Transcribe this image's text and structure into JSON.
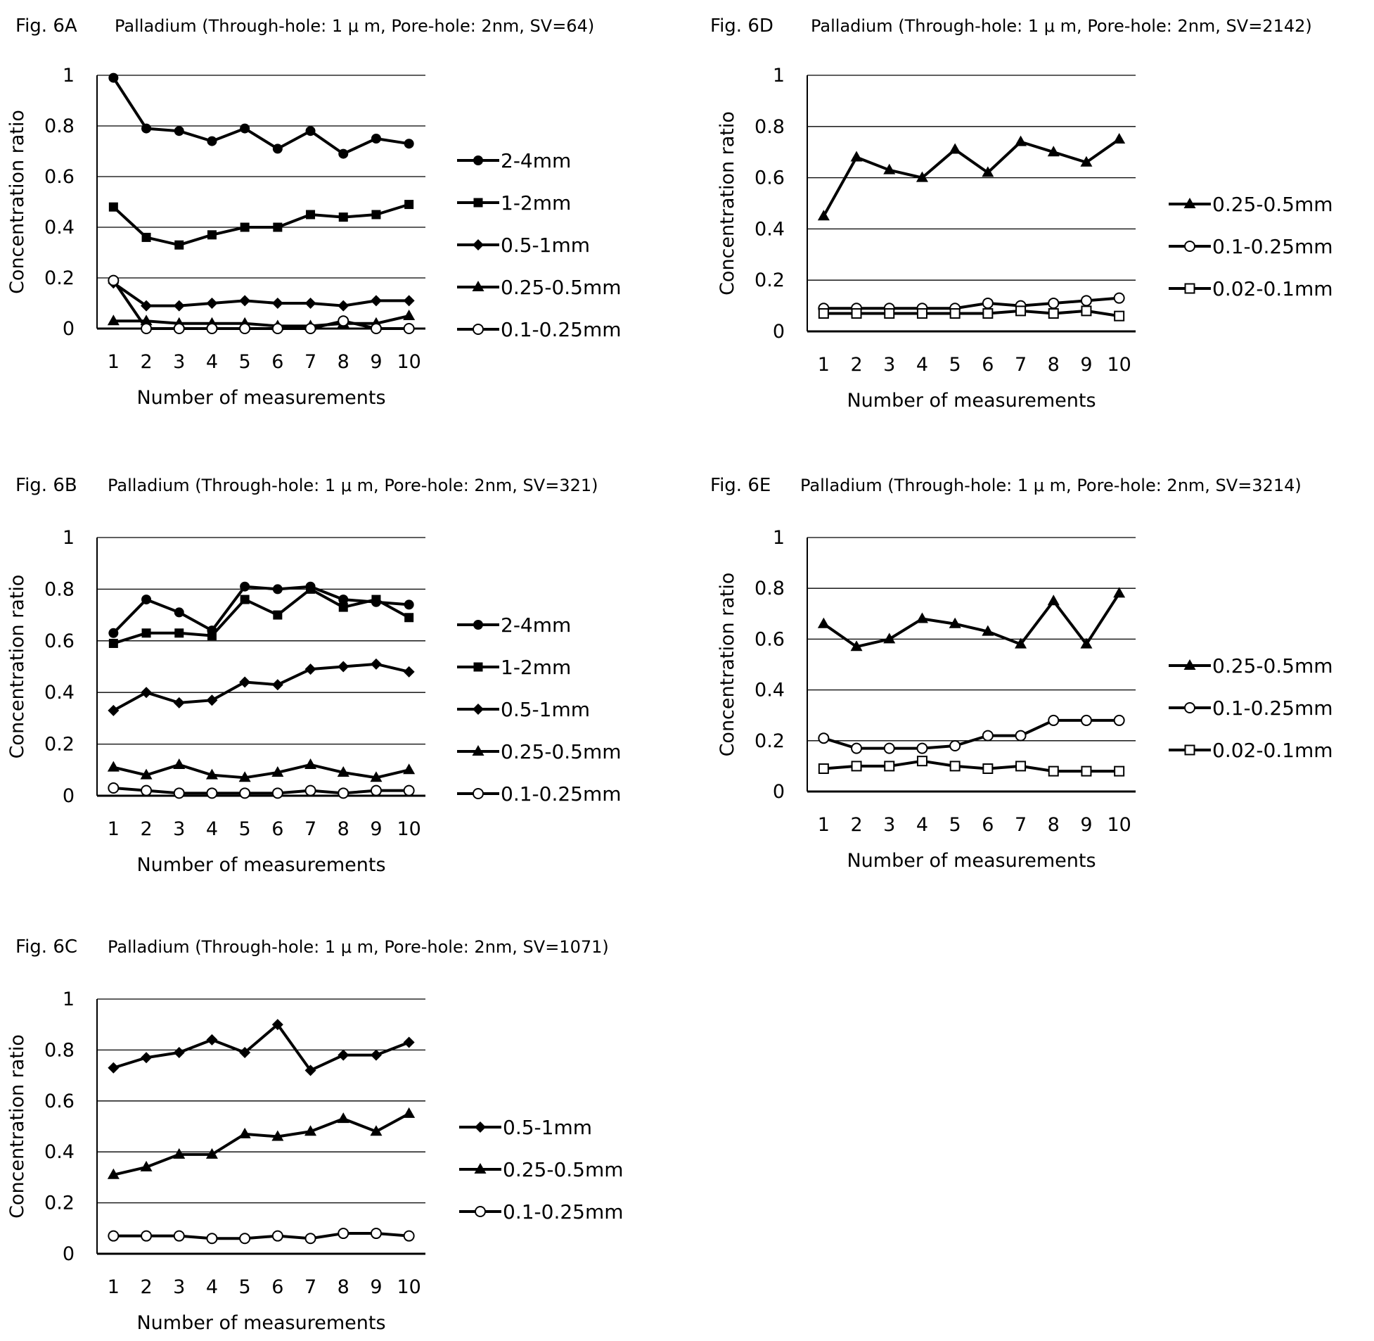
{
  "charts": [
    {
      "fig_label": "Fig. 6A",
      "title": "Palladium (Through-hole: 1 μ m, Pore-hole: 2nm, SV=64)",
      "chart_data": {
        "type": "line",
        "xlabel": "Number of measurements",
        "ylabel": "Concentration ratio",
        "x": [
          1,
          2,
          3,
          4,
          5,
          6,
          7,
          8,
          9,
          10
        ],
        "yticks": [
          "0",
          "0.2",
          "0.4",
          "0.6",
          "0.8",
          "1"
        ],
        "ylim": [
          0,
          1
        ],
        "grid": true,
        "legend_position": "right",
        "series": [
          {
            "name": "2-4mm",
            "marker": "filled-circle",
            "values": [
              0.99,
              0.79,
              0.78,
              0.74,
              0.79,
              0.71,
              0.78,
              0.69,
              0.75,
              0.73
            ]
          },
          {
            "name": "1-2mm",
            "marker": "filled-square",
            "values": [
              0.48,
              0.36,
              0.33,
              0.37,
              0.4,
              0.4,
              0.45,
              0.44,
              0.45,
              0.49
            ]
          },
          {
            "name": "0.5-1mm",
            "marker": "filled-diamond",
            "values": [
              0.18,
              0.09,
              0.09,
              0.1,
              0.11,
              0.1,
              0.1,
              0.09,
              0.11,
              0.11
            ]
          },
          {
            "name": "0.25-0.5mm",
            "marker": "filled-triangle",
            "values": [
              0.03,
              0.03,
              0.02,
              0.02,
              0.02,
              0.01,
              0.01,
              0.02,
              0.02,
              0.05
            ]
          },
          {
            "name": "0.1-0.25mm",
            "marker": "open-circle",
            "values": [
              0.19,
              0.0,
              0.0,
              0.0,
              0.0,
              0.0,
              0.0,
              0.03,
              0.0,
              0.0
            ]
          }
        ]
      }
    },
    {
      "fig_label": "Fig. 6B",
      "title": "Palladium (Through-hole: 1 μ m, Pore-hole: 2nm, SV=321)",
      "chart_data": {
        "type": "line",
        "xlabel": "Number of measurements",
        "ylabel": "Concentration ratio",
        "x": [
          1,
          2,
          3,
          4,
          5,
          6,
          7,
          8,
          9,
          10
        ],
        "yticks": [
          "0",
          "0.2",
          "0.4",
          "0.6",
          "0.8",
          "1"
        ],
        "ylim": [
          0,
          1
        ],
        "grid": true,
        "legend_position": "right",
        "series": [
          {
            "name": "2-4mm",
            "marker": "filled-circle",
            "values": [
              0.63,
              0.76,
              0.71,
              0.64,
              0.81,
              0.8,
              0.81,
              0.76,
              0.75,
              0.74
            ]
          },
          {
            "name": "1-2mm",
            "marker": "filled-square",
            "values": [
              0.59,
              0.63,
              0.63,
              0.62,
              0.76,
              0.7,
              0.8,
              0.73,
              0.76,
              0.69
            ]
          },
          {
            "name": "0.5-1mm",
            "marker": "filled-diamond",
            "values": [
              0.33,
              0.4,
              0.36,
              0.37,
              0.44,
              0.43,
              0.49,
              0.5,
              0.51,
              0.48
            ]
          },
          {
            "name": "0.25-0.5mm",
            "marker": "filled-triangle",
            "values": [
              0.11,
              0.08,
              0.12,
              0.08,
              0.07,
              0.09,
              0.12,
              0.09,
              0.07,
              0.1
            ]
          },
          {
            "name": "0.1-0.25mm",
            "marker": "open-circle",
            "values": [
              0.03,
              0.02,
              0.01,
              0.01,
              0.01,
              0.01,
              0.02,
              0.01,
              0.02,
              0.02
            ]
          }
        ]
      }
    },
    {
      "fig_label": "Fig. 6C",
      "title": "Palladium (Through-hole: 1 μ m, Pore-hole: 2nm, SV=1071)",
      "chart_data": {
        "type": "line",
        "xlabel": "Number of measurements",
        "ylabel": "Concentration ratio",
        "x": [
          1,
          2,
          3,
          4,
          5,
          6,
          7,
          8,
          9,
          10
        ],
        "yticks": [
          "0",
          "0.2",
          "0.4",
          "0.6",
          "0.8",
          "1"
        ],
        "ylim": [
          0,
          1
        ],
        "grid": true,
        "legend_position": "right",
        "series": [
          {
            "name": "0.5-1mm",
            "marker": "filled-diamond",
            "values": [
              0.73,
              0.77,
              0.79,
              0.84,
              0.79,
              0.9,
              0.72,
              0.78,
              0.78,
              0.83
            ]
          },
          {
            "name": "0.25-0.5mm",
            "marker": "filled-triangle",
            "values": [
              0.31,
              0.34,
              0.39,
              0.39,
              0.47,
              0.46,
              0.48,
              0.53,
              0.48,
              0.55
            ]
          },
          {
            "name": "0.1-0.25mm",
            "marker": "open-circle",
            "values": [
              0.07,
              0.07,
              0.07,
              0.06,
              0.06,
              0.07,
              0.06,
              0.08,
              0.08,
              0.07
            ]
          }
        ]
      }
    },
    {
      "fig_label": "Fig. 6D",
      "title": "Palladium (Through-hole: 1 μ m, Pore-hole: 2nm, SV=2142)",
      "chart_data": {
        "type": "line",
        "xlabel": "Number of measurements",
        "ylabel": "Concentration ratio",
        "x": [
          1,
          2,
          3,
          4,
          5,
          6,
          7,
          8,
          9,
          10
        ],
        "yticks": [
          "0",
          "0.2",
          "0.4",
          "0.6",
          "0.8",
          "1"
        ],
        "ylim": [
          0,
          1
        ],
        "grid": true,
        "legend_position": "right",
        "series": [
          {
            "name": "0.25-0.5mm",
            "marker": "filled-triangle",
            "values": [
              0.45,
              0.68,
              0.63,
              0.6,
              0.71,
              0.62,
              0.74,
              0.7,
              0.66,
              0.75
            ]
          },
          {
            "name": "0.1-0.25mm",
            "marker": "open-circle",
            "values": [
              0.09,
              0.09,
              0.09,
              0.09,
              0.09,
              0.11,
              0.1,
              0.11,
              0.12,
              0.13
            ]
          },
          {
            "name": "0.02-0.1mm",
            "marker": "open-square",
            "values": [
              0.07,
              0.07,
              0.07,
              0.07,
              0.07,
              0.07,
              0.08,
              0.07,
              0.08,
              0.06
            ]
          }
        ]
      }
    },
    {
      "fig_label": "Fig. 6E",
      "title": "Palladium (Through-hole: 1 μ m, Pore-hole: 2nm, SV=3214)",
      "chart_data": {
        "type": "line",
        "xlabel": "Number of measurements",
        "ylabel": "Concentration ratio",
        "x": [
          1,
          2,
          3,
          4,
          5,
          6,
          7,
          8,
          9,
          10
        ],
        "yticks": [
          "0",
          "0.2",
          "0.4",
          "0.6",
          "0.8",
          "1"
        ],
        "ylim": [
          0,
          1
        ],
        "grid": true,
        "legend_position": "right",
        "series": [
          {
            "name": "0.25-0.5mm",
            "marker": "filled-triangle",
            "values": [
              0.66,
              0.57,
              0.6,
              0.68,
              0.66,
              0.63,
              0.58,
              0.75,
              0.58,
              0.78
            ]
          },
          {
            "name": "0.1-0.25mm",
            "marker": "open-circle",
            "values": [
              0.21,
              0.17,
              0.17,
              0.17,
              0.18,
              0.22,
              0.22,
              0.28,
              0.28,
              0.28
            ]
          },
          {
            "name": "0.02-0.1mm",
            "marker": "open-square",
            "values": [
              0.09,
              0.1,
              0.1,
              0.12,
              0.1,
              0.09,
              0.1,
              0.08,
              0.08,
              0.08
            ]
          }
        ]
      }
    }
  ]
}
